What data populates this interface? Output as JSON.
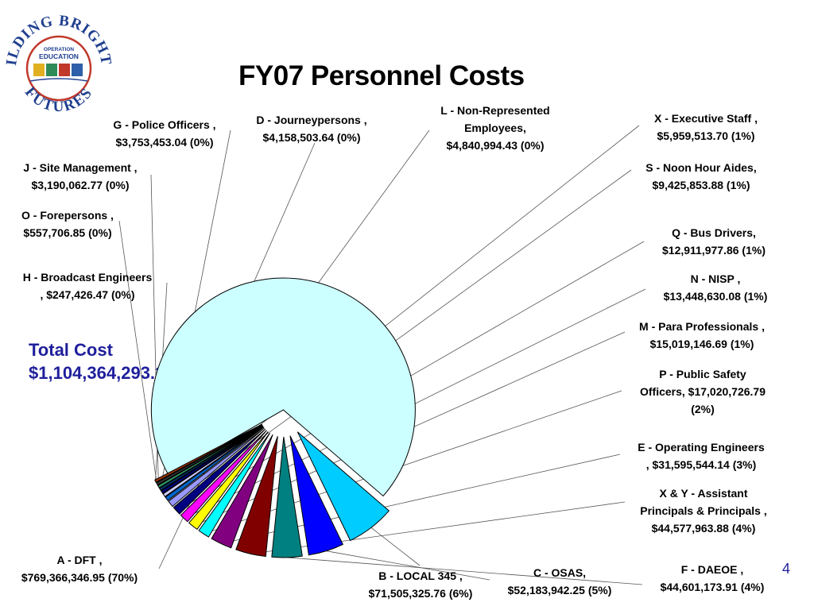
{
  "slide": {
    "title": "FY07 Personnel Costs",
    "total_label": "Total Cost",
    "total_value": "$1,104,364,293.11",
    "page_number": "4"
  },
  "logo": {
    "top_text": "BUILDING BRIGHTER",
    "bottom_text": "FUTURES",
    "center_line1": "OPERATION",
    "center_line2": "EDUCATION"
  },
  "chart_data": {
    "type": "pie",
    "title": "FY07 Personnel Costs",
    "exploded": true,
    "slices": [
      {
        "id": "A",
        "lines": [
          "A - DFT ,",
          "$769,366,346.95  (70%)"
        ],
        "value": 769366346.95,
        "percent": 70,
        "color": "#ccffff"
      },
      {
        "id": "B",
        "lines": [
          "B - LOCAL 345 ,",
          "$71,505,325.76  (6%)"
        ],
        "value": 71505325.76,
        "percent": 6,
        "color": "#00ccff"
      },
      {
        "id": "C",
        "lines": [
          "C - OSAS,",
          "$52,183,942.25  (5%)"
        ],
        "value": 52183942.25,
        "percent": 5,
        "color": "#0000ff"
      },
      {
        "id": "F",
        "lines": [
          "F - DAEOE ,",
          "$44,601,173.91  (4%)"
        ],
        "value": 44601173.91,
        "percent": 4,
        "color": "#008080"
      },
      {
        "id": "XY",
        "lines": [
          "X & Y - Assistant",
          "Principals & Principals ,",
          "$44,577,963.88  (4%)"
        ],
        "value": 44577963.88,
        "percent": 4,
        "color": "#800000"
      },
      {
        "id": "E",
        "lines": [
          "E - Operating Engineers",
          ",  $31,595,544.14  (3%)"
        ],
        "value": 31595544.14,
        "percent": 3,
        "color": "#800080"
      },
      {
        "id": "P",
        "lines": [
          "P - Public Safety",
          "Officers,  $17,020,726.79",
          "(2%)"
        ],
        "value": 17020726.79,
        "percent": 2,
        "color": "#00ffff"
      },
      {
        "id": "M",
        "lines": [
          "M - Para Professionals ,",
          "$15,019,146.69  (1%)"
        ],
        "value": 15019146.69,
        "percent": 1,
        "color": "#ffff00"
      },
      {
        "id": "N",
        "lines": [
          "N - NISP ,",
          "$13,448,630.08  (1%)"
        ],
        "value": 13448630.08,
        "percent": 1,
        "color": "#ff00ff"
      },
      {
        "id": "Q",
        "lines": [
          "Q - Bus Drivers,",
          "$12,911,977.86  (1%)"
        ],
        "value": 12911977.86,
        "percent": 1,
        "color": "#000080"
      },
      {
        "id": "S",
        "lines": [
          "S - Noon Hour Aides,",
          "$9,425,853.88  (1%)"
        ],
        "value": 9425853.88,
        "percent": 1,
        "color": "#9999ff"
      },
      {
        "id": "X",
        "lines": [
          "X - Executive Staff ,",
          "$5,959,513.70  (1%)"
        ],
        "value": 5959513.7,
        "percent": 1,
        "color": "#0066cc"
      },
      {
        "id": "L",
        "lines": [
          "L - Non-Represented",
          "Employees,",
          "$4,840,994.43  (0%)"
        ],
        "value": 4840994.43,
        "percent": 0,
        "color": "#ccccff"
      },
      {
        "id": "D",
        "lines": [
          "D - Journeypersons ,",
          "$4,158,503.64  (0%)"
        ],
        "value": 4158503.64,
        "percent": 0,
        "color": "#000080"
      },
      {
        "id": "G",
        "lines": [
          "G - Police Officers ,",
          "$3,753,453.04  (0%)"
        ],
        "value": 3753453.04,
        "percent": 0,
        "color": "#003366"
      },
      {
        "id": "J",
        "lines": [
          "J - Site Management ,",
          "$3,190,062.77  (0%)"
        ],
        "value": 3190062.77,
        "percent": 0,
        "color": "#339966"
      },
      {
        "id": "O",
        "lines": [
          "O - Forepersons ,",
          "$557,706.85  (0%)"
        ],
        "value": 557706.85,
        "percent": 0,
        "color": "#333333"
      },
      {
        "id": "H",
        "lines": [
          "H - Broadcast Engineers",
          ",  $247,426.47  (0%)"
        ],
        "value": 247426.47,
        "percent": 0,
        "color": "#993300"
      }
    ]
  }
}
